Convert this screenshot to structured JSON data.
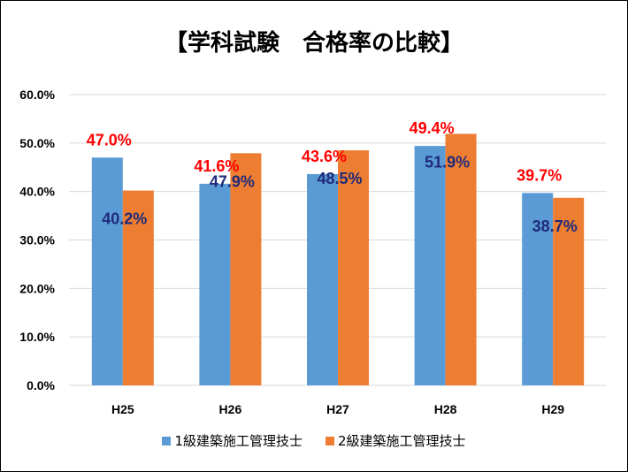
{
  "chart_data": {
    "type": "bar",
    "title": "【学科試験　合格率の比較】",
    "xlabel": "",
    "ylabel": "",
    "categories": [
      "H25",
      "H26",
      "H27",
      "H28",
      "H29"
    ],
    "series": [
      {
        "name": "1級建築施工管理技士",
        "color": "#5B9BD5",
        "label_color": "#FF0000",
        "values": [
          47.0,
          41.6,
          43.6,
          49.4,
          39.7
        ]
      },
      {
        "name": "2級建築施工管理技士",
        "color": "#ED7D31",
        "label_color": "#1F2A7A",
        "values": [
          40.2,
          47.9,
          48.5,
          51.9,
          38.7
        ]
      }
    ],
    "data_labels": [
      [
        "47.0%",
        "41.6%",
        "43.6%",
        "49.4%",
        "39.7%"
      ],
      [
        "40.2%",
        "47.9%",
        "48.5%",
        "51.9%",
        "38.7%"
      ]
    ],
    "yticks": [
      "0.0%",
      "10.0%",
      "20.0%",
      "30.0%",
      "40.0%",
      "50.0%",
      "60.0%"
    ],
    "ylim": [
      0,
      60
    ],
    "grid": true,
    "legend_position": "bottom"
  }
}
